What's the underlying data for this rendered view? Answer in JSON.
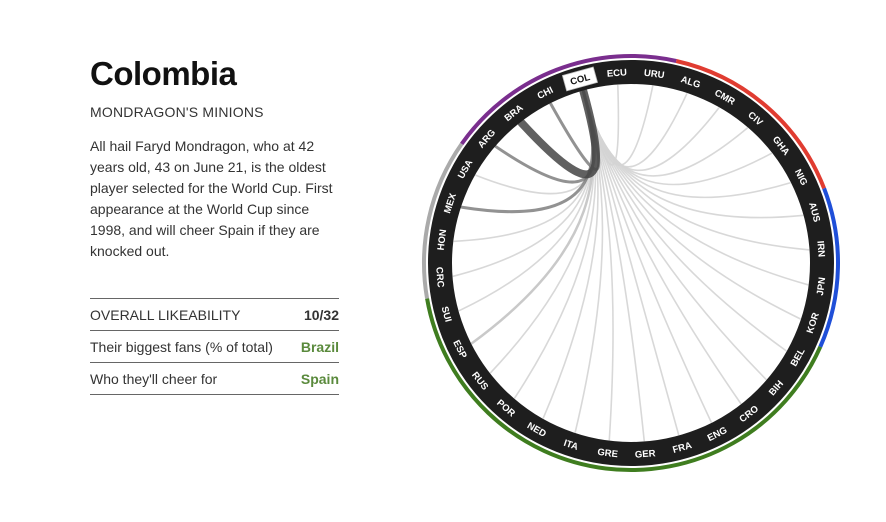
{
  "team": {
    "name": "Colombia",
    "subtitle": "MONDRAGON'S MINIONS",
    "description": "All hail Faryd Mondragon, who at 42 years old, 43 on June 21, is the oldest player selected for the World Cup. First appearance at the World Cup since 1998, and will cheer Spain if they are knocked out."
  },
  "stats": [
    {
      "label": "OVERALL LIKEABILITY",
      "value": "10/32",
      "color": "#333333"
    },
    {
      "label": "Their biggest fans (% of total)",
      "value": "Brazil",
      "color": "#5a8a3c"
    },
    {
      "label": "Who they'll cheer for",
      "value": "Spain",
      "color": "#5a8a3c"
    }
  ],
  "chart_data": {
    "type": "chord",
    "selected": "COL",
    "teams": [
      "URU",
      "ALG",
      "CMR",
      "CIV",
      "GHA",
      "NIG",
      "AUS",
      "IRN",
      "JPN",
      "KOR",
      "BEL",
      "BIH",
      "CRO",
      "ENG",
      "FRA",
      "GER",
      "GRE",
      "ITA",
      "NED",
      "POR",
      "RUS",
      "ESP",
      "SUI",
      "CRC",
      "HON",
      "MEX",
      "USA",
      "ARG",
      "BRA",
      "CHI",
      "COL",
      "ECU"
    ],
    "groups": [
      {
        "color": "#e03c31",
        "teams": [
          "ALG",
          "CMR",
          "CIV",
          "GHA",
          "NIG"
        ]
      },
      {
        "color": "#1f4fd8",
        "teams": [
          "AUS",
          "IRN",
          "JPN",
          "KOR"
        ]
      },
      {
        "color": "#3f7d1f",
        "teams": [
          "BEL",
          "BIH",
          "CRO",
          "ENG",
          "FRA",
          "GER",
          "GRE",
          "ITA",
          "NED",
          "POR",
          "RUS",
          "ESP",
          "SUI"
        ]
      },
      {
        "color": "#aaaaaa",
        "teams": [
          "CRC",
          "HON",
          "MEX",
          "USA"
        ]
      },
      {
        "color": "#7a2e8e",
        "teams": [
          "ARG",
          "BRA",
          "CHI",
          "COL",
          "ECU",
          "URU"
        ]
      }
    ],
    "links": [
      {
        "team": "BRA",
        "strength": "strong"
      },
      {
        "team": "ARG",
        "strength": "medium"
      },
      {
        "team": "MEX",
        "strength": "medium"
      },
      {
        "team": "CHI",
        "strength": "medium"
      },
      {
        "team": "ESP",
        "strength": "light"
      },
      {
        "team": "USA",
        "strength": "faint"
      },
      {
        "team": "HON",
        "strength": "faint"
      },
      {
        "team": "CRC",
        "strength": "faint"
      },
      {
        "team": "SUI",
        "strength": "faint"
      },
      {
        "team": "RUS",
        "strength": "faint"
      },
      {
        "team": "POR",
        "strength": "faint"
      },
      {
        "team": "NED",
        "strength": "faint"
      },
      {
        "team": "ITA",
        "strength": "faint"
      },
      {
        "team": "GRE",
        "strength": "faint"
      },
      {
        "team": "GER",
        "strength": "faint"
      },
      {
        "team": "FRA",
        "strength": "faint"
      },
      {
        "team": "ENG",
        "strength": "faint"
      },
      {
        "team": "CRO",
        "strength": "faint"
      },
      {
        "team": "BIH",
        "strength": "faint"
      },
      {
        "team": "BEL",
        "strength": "faint"
      },
      {
        "team": "KOR",
        "strength": "faint"
      },
      {
        "team": "JPN",
        "strength": "faint"
      },
      {
        "team": "IRN",
        "strength": "faint"
      },
      {
        "team": "AUS",
        "strength": "faint"
      },
      {
        "team": "NIG",
        "strength": "faint"
      },
      {
        "team": "GHA",
        "strength": "faint"
      },
      {
        "team": "CIV",
        "strength": "faint"
      },
      {
        "team": "CMR",
        "strength": "faint"
      },
      {
        "team": "ALG",
        "strength": "faint"
      },
      {
        "team": "URU",
        "strength": "faint"
      },
      {
        "team": "ECU",
        "strength": "faint"
      }
    ]
  }
}
